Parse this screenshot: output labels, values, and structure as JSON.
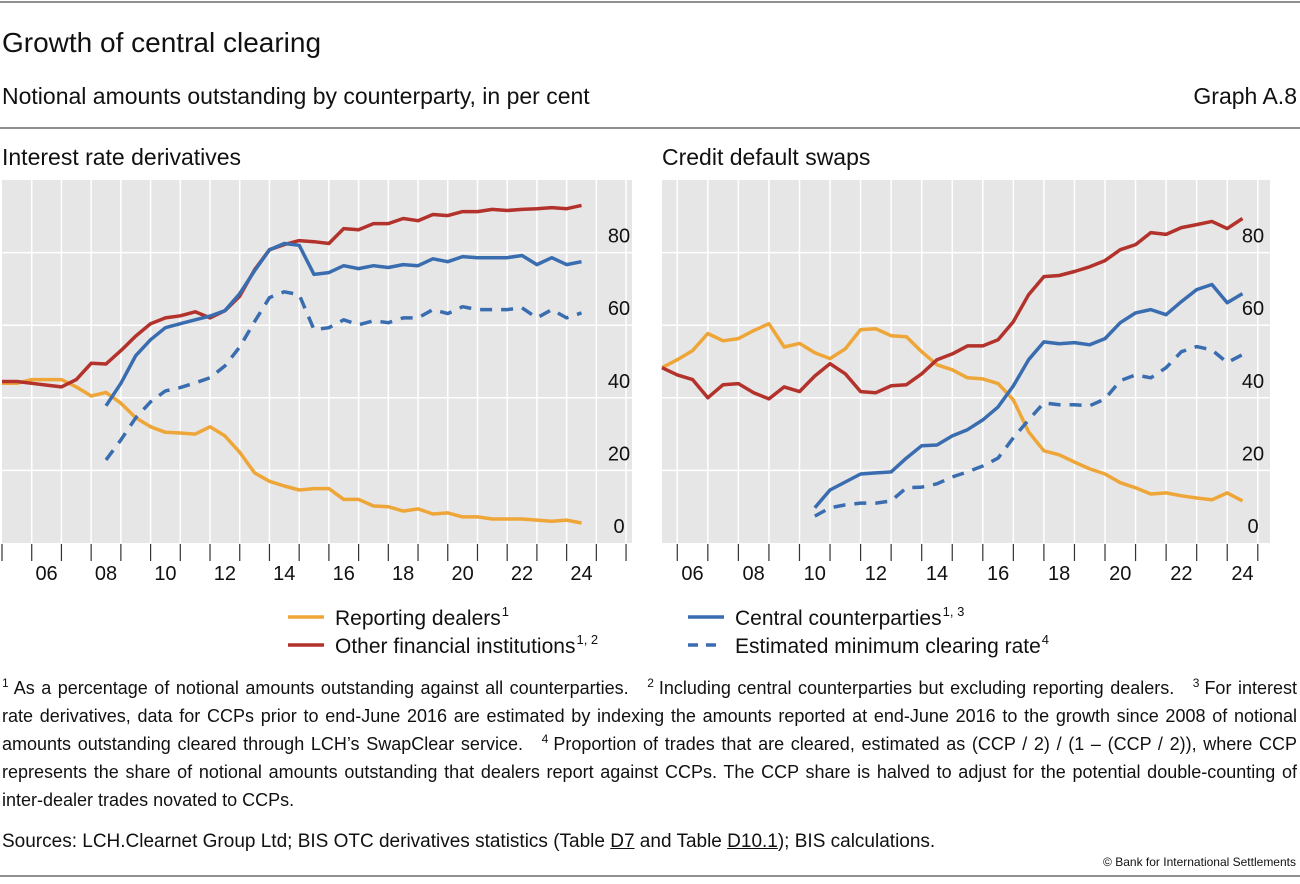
{
  "header": {
    "title": "Growth of central clearing",
    "subtitle": "Notional amounts outstanding by counterparty, in per cent",
    "graph_label": "Graph A.8"
  },
  "chart_data": [
    {
      "type": "line",
      "title": "Interest rate derivatives",
      "x": [
        2005,
        2005.5,
        2006,
        2006.5,
        2007,
        2007.5,
        2008,
        2008.5,
        2009,
        2009.5,
        2010,
        2010.5,
        2011,
        2011.5,
        2012,
        2012.5,
        2013,
        2013.5,
        2014,
        2014.5,
        2015,
        2015.5,
        2016,
        2016.5,
        2017,
        2017.5,
        2018,
        2018.5,
        2019,
        2019.5,
        2020,
        2020.5,
        2021,
        2021.5,
        2022,
        2022.5,
        2023,
        2023.5,
        2024,
        2024.5
      ],
      "xlim": [
        2005,
        2026.2
      ],
      "xticks": [
        {
          "value": 2006,
          "label": "06"
        },
        {
          "value": 2008,
          "label": "08"
        },
        {
          "value": 2010,
          "label": "10"
        },
        {
          "value": 2012,
          "label": "12"
        },
        {
          "value": 2014,
          "label": "14"
        },
        {
          "value": 2016,
          "label": "16"
        },
        {
          "value": 2018,
          "label": "18"
        },
        {
          "value": 2020,
          "label": "20"
        },
        {
          "value": 2022,
          "label": "22"
        },
        {
          "value": 2024,
          "label": "24"
        }
      ],
      "xminor": [
        2005,
        2006,
        2007,
        2008,
        2009,
        2010,
        2011,
        2012,
        2013,
        2014,
        2015,
        2016,
        2017,
        2018,
        2019,
        2020,
        2021,
        2022,
        2023,
        2024,
        2025,
        2026
      ],
      "ylim": [
        0,
        100
      ],
      "yticks": [
        0,
        20,
        40,
        60,
        80
      ],
      "grid": true,
      "series": [
        {
          "name": "Reporting dealers",
          "note": "1",
          "color": "#eea638",
          "style": "solid",
          "values": [
            44,
            44,
            45,
            45,
            45,
            43,
            40.5,
            41.5,
            38.5,
            34.5,
            32,
            30.5,
            30.3,
            30,
            32,
            29.5,
            25,
            19.3,
            17,
            15.7,
            14.6,
            15,
            15,
            12,
            12,
            10.2,
            10,
            8.8,
            9.4,
            8,
            8.3,
            7.2,
            7.2,
            6.6,
            6.6,
            6.6,
            6.3,
            6,
            6.3,
            5.5
          ]
        },
        {
          "name": "Other financial institutions",
          "note": "1, 2",
          "color": "#b3322c",
          "style": "solid",
          "values": [
            44.5,
            44.5,
            44,
            43.5,
            43,
            45,
            49.5,
            49.3,
            53,
            57,
            60.4,
            62,
            62.6,
            63.7,
            62,
            64,
            68,
            75.3,
            80.8,
            82.2,
            83.3,
            83,
            82.5,
            86.6,
            86.3,
            88,
            88,
            89.4,
            88.8,
            90.5,
            90.2,
            91.3,
            91.3,
            91.9,
            91.6,
            91.9,
            92.1,
            92.4,
            92.1,
            93
          ]
        },
        {
          "name": "Central counterparties",
          "note": "1, 3",
          "color": "#3a6db0",
          "style": "solid",
          "values": [
            null,
            null,
            null,
            null,
            null,
            null,
            null,
            37.8,
            44,
            51.6,
            56,
            59.3,
            60.4,
            61.5,
            62.5,
            64,
            68.7,
            75,
            80.8,
            82.5,
            82,
            74,
            74.5,
            76.4,
            75.6,
            76.4,
            75.9,
            76.7,
            76.4,
            78.3,
            77.5,
            78.9,
            78.6,
            78.6,
            78.6,
            79.2,
            76.7,
            78.6,
            76.7,
            77.5
          ]
        },
        {
          "name": "Estimated minimum clearing rate",
          "note": "4",
          "color": "#3a6db0",
          "style": "dashed",
          "values": [
            null,
            null,
            null,
            null,
            null,
            null,
            null,
            22.9,
            28.4,
            34.5,
            38.9,
            41.9,
            42.8,
            44.1,
            45.5,
            48.8,
            54,
            61,
            67.6,
            69.2,
            68.4,
            58.8,
            59.3,
            61.5,
            60.1,
            61.2,
            60.7,
            62,
            62,
            64.3,
            63.2,
            65.1,
            64.3,
            64.3,
            64.3,
            64.8,
            62,
            64.3,
            62,
            63.4
          ]
        }
      ]
    },
    {
      "type": "line",
      "title": "Credit default swaps",
      "x": [
        2005.5,
        2006,
        2006.5,
        2007,
        2007.5,
        2008,
        2008.5,
        2009,
        2009.5,
        2010,
        2010.5,
        2011,
        2011.5,
        2012,
        2012.5,
        2013,
        2013.5,
        2014,
        2014.5,
        2015,
        2015.5,
        2016,
        2016.5,
        2017,
        2017.5,
        2018,
        2018.5,
        2019,
        2019.5,
        2020,
        2020.5,
        2021,
        2021.5,
        2022,
        2022.5,
        2023,
        2023.5,
        2024,
        2024.5
      ],
      "xlim": [
        2005.5,
        2025.4
      ],
      "xticks": [
        {
          "value": 2006,
          "label": "06"
        },
        {
          "value": 2008,
          "label": "08"
        },
        {
          "value": 2010,
          "label": "10"
        },
        {
          "value": 2012,
          "label": "12"
        },
        {
          "value": 2014,
          "label": "14"
        },
        {
          "value": 2016,
          "label": "16"
        },
        {
          "value": 2018,
          "label": "18"
        },
        {
          "value": 2020,
          "label": "20"
        },
        {
          "value": 2022,
          "label": "22"
        },
        {
          "value": 2024,
          "label": "24"
        }
      ],
      "xminor": [
        2006,
        2007,
        2008,
        2009,
        2010,
        2011,
        2012,
        2013,
        2014,
        2015,
        2016,
        2017,
        2018,
        2019,
        2020,
        2021,
        2022,
        2023,
        2024,
        2025
      ],
      "ylim": [
        0,
        100
      ],
      "yticks": [
        0,
        20,
        40,
        60,
        80
      ],
      "grid": true,
      "series": [
        {
          "name": "Reporting dealers",
          "note": "1",
          "color": "#eea638",
          "style": "solid",
          "values": [
            48.3,
            50.5,
            53,
            57.7,
            55.7,
            56.3,
            58.5,
            60.4,
            54,
            55,
            52.4,
            50.8,
            53.5,
            58.8,
            59,
            57.1,
            56.8,
            52.7,
            49.1,
            47.7,
            45.5,
            45.2,
            43.9,
            39.4,
            30.6,
            25.4,
            24.3,
            22.3,
            20.4,
            19,
            16.6,
            15.2,
            13.5,
            13.8,
            13,
            12.4,
            11.9,
            13.8,
            11.6
          ]
        },
        {
          "name": "Other financial institutions",
          "note": "1, 2",
          "color": "#b3322c",
          "style": "solid",
          "values": [
            48.3,
            46.3,
            45,
            40,
            43.6,
            43.9,
            41.4,
            39.7,
            43,
            41.7,
            46,
            49.4,
            46.6,
            41.7,
            41.4,
            43.3,
            43.6,
            46.6,
            50.5,
            52.1,
            54.3,
            54.3,
            56,
            61,
            68.4,
            73.4,
            73.7,
            74.8,
            76.1,
            77.8,
            80.8,
            82.2,
            85.5,
            85,
            86.9,
            87.7,
            88.6,
            86.6,
            89.4
          ]
        },
        {
          "name": "Central counterparties",
          "note": "1, 3",
          "color": "#3a6db0",
          "style": "solid",
          "values": [
            null,
            null,
            null,
            null,
            null,
            null,
            null,
            null,
            null,
            null,
            9.7,
            14.6,
            16.8,
            19,
            19.3,
            19.6,
            23.4,
            26.8,
            27,
            29.5,
            31.2,
            33.9,
            37.5,
            43.3,
            50.5,
            55.4,
            54.9,
            55.2,
            54.6,
            56.3,
            60.7,
            63.4,
            64.3,
            62.9,
            66.5,
            69.8,
            71.2,
            66.2,
            68.7
          ]
        },
        {
          "name": "Estimated minimum clearing rate",
          "note": "4",
          "color": "#3a6db0",
          "style": "dashed",
          "values": [
            null,
            null,
            null,
            null,
            null,
            null,
            null,
            null,
            null,
            null,
            7.4,
            9.7,
            10.5,
            11,
            11,
            11.6,
            15.2,
            15.4,
            16.3,
            18.2,
            19.6,
            21.2,
            23.4,
            29,
            33.9,
            38.6,
            38.1,
            38.1,
            37.8,
            39.7,
            44.7,
            46.3,
            45.5,
            48.3,
            52.7,
            54.1,
            53.2,
            49.7,
            51.9
          ]
        }
      ]
    }
  ],
  "footnotes": [
    {
      "marker": "1",
      "text": "As a percentage of notional amounts outstanding against all counterparties."
    },
    {
      "marker": "2",
      "text": "Including central counterparties but excluding reporting dealers."
    },
    {
      "marker": "3",
      "text": "For interest rate derivatives, data for CCPs prior to end-June 2016 are estimated by indexing the amounts reported at end-June 2016 to the growth since 2008 of notional amounts outstanding cleared through LCH’s SwapClear service."
    },
    {
      "marker": "4",
      "text": "Proportion of trades that are cleared, estimated as (CCP / 2) / (1 – (CCP / 2)), where CCP represents the share of notional amounts outstanding that dealers report against CCPs. The CCP share is halved to adjust for the potential double-counting of inter-dealer trades novated to CCPs."
    }
  ],
  "sources": [
    "Sources: LCH.Clearnet Group Ltd; BIS OTC derivatives statistics (Table ",
    "D7",
    " and Table ",
    "D10.1",
    "); BIS calculations."
  ],
  "copyright": "© Bank for International Settlements"
}
